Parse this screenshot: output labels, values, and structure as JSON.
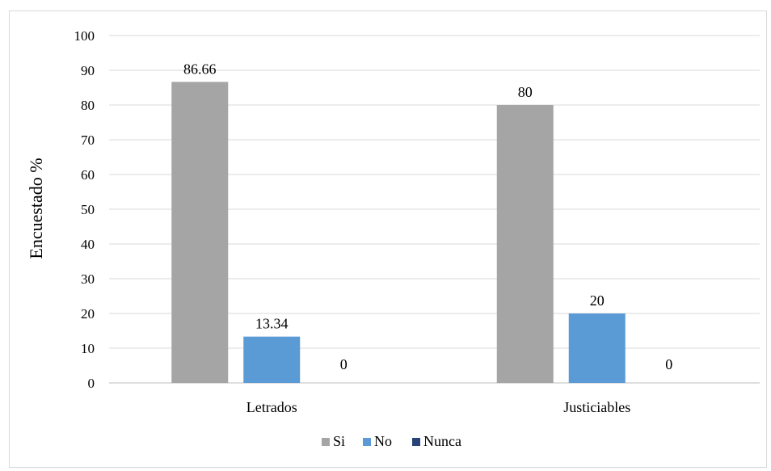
{
  "chart_data": {
    "type": "bar",
    "title": "",
    "xlabel": "",
    "ylabel": "Encuestado %",
    "ylim": [
      0,
      100
    ],
    "yticks": [
      0,
      10,
      20,
      30,
      40,
      50,
      60,
      70,
      80,
      90,
      100
    ],
    "grid": true,
    "legend_position": "bottom",
    "categories": [
      "Letrados",
      "Justiciables"
    ],
    "series": [
      {
        "name": "Si",
        "values": [
          86.66,
          80
        ],
        "data_labels": [
          "86.66",
          "80"
        ],
        "color": "#a5a5a5"
      },
      {
        "name": "No",
        "values": [
          13.34,
          20
        ],
        "data_labels": [
          "13.34",
          "20"
        ],
        "color": "#5b9bd5"
      },
      {
        "name": "Nunca",
        "values": [
          0,
          0
        ],
        "data_labels": [
          "0",
          "0"
        ],
        "color": "#264478"
      }
    ]
  }
}
